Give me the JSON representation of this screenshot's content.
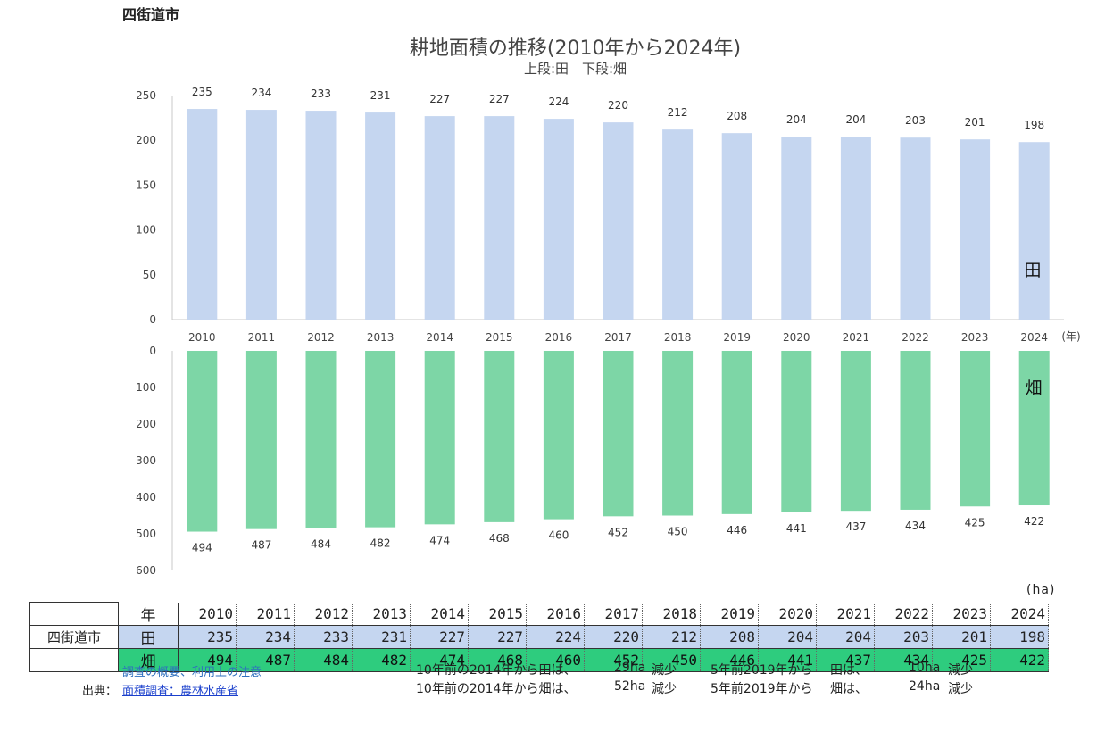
{
  "city": "四街道市",
  "chart_data": {
    "type": "bar",
    "title": "耕地面積の推移(2010年から2024年)",
    "subtitle": "上段:田　下段:畑",
    "categories": [
      "2010",
      "2011",
      "2012",
      "2013",
      "2014",
      "2015",
      "2016",
      "2017",
      "2018",
      "2019",
      "2020",
      "2021",
      "2022",
      "2023",
      "2024"
    ],
    "x_unit": "(年)",
    "series": [
      {
        "name": "田",
        "color": "#c5d6f0",
        "values": [
          235,
          234,
          233,
          231,
          227,
          227,
          224,
          220,
          212,
          208,
          204,
          204,
          203,
          201,
          198
        ],
        "ylim": [
          0,
          250
        ],
        "yticks": [
          0,
          50,
          100,
          150,
          200,
          250
        ]
      },
      {
        "name": "畑",
        "color": "#7dd6a6",
        "values": [
          494,
          487,
          484,
          482,
          474,
          468,
          460,
          452,
          450,
          446,
          441,
          437,
          434,
          425,
          422
        ],
        "ylim": [
          0,
          600
        ],
        "yticks": [
          0,
          100,
          200,
          300,
          400,
          500,
          600
        ],
        "inverted": true
      }
    ]
  },
  "table": {
    "unit": "(ha)",
    "header_label": "年",
    "row_head": "四街道市",
    "rows": [
      {
        "label": "田",
        "values": [
          "235",
          "234",
          "233",
          "231",
          "227",
          "227",
          "224",
          "220",
          "212",
          "208",
          "204",
          "204",
          "203",
          "201",
          "198"
        ]
      },
      {
        "label": "畑",
        "values": [
          "494",
          "487",
          "484",
          "482",
          "474",
          "468",
          "460",
          "452",
          "450",
          "446",
          "441",
          "437",
          "434",
          "425",
          "422"
        ]
      }
    ]
  },
  "notes": {
    "overview_link": "調査の概要、利用上の注意",
    "source_label": "出典：",
    "source_link": "面積調査：農林水産省"
  },
  "summary": {
    "rice_10y": "10年前の2014年から田は、",
    "rice_10y_val": "29ha",
    "rice_10y_word": "減少",
    "field_10y": "10年前の2014年から畑は、",
    "field_10y_val": "52ha",
    "field_10y_word": "減少",
    "rice_5y_pre": "5年前2019年から",
    "rice_5y": "田は、",
    "rice_5y_val": "10ha",
    "rice_5y_word": "減少",
    "field_5y_pre": "5年前2019年から",
    "field_5y": "畑は、",
    "field_5y_val": "24ha",
    "field_5y_word": "減少"
  }
}
